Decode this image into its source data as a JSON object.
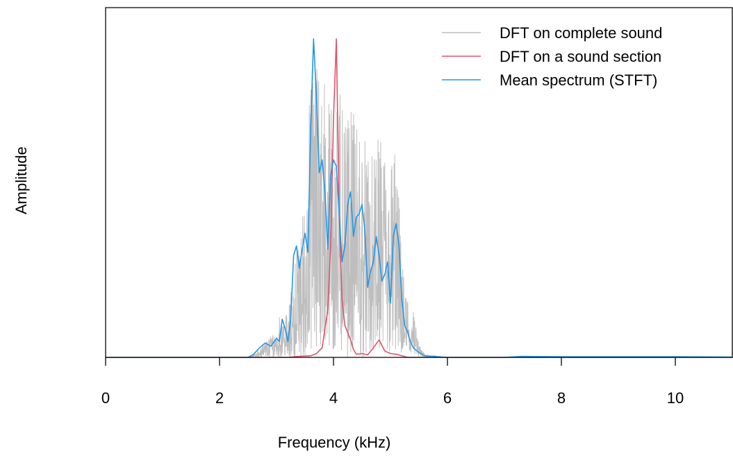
{
  "chart_data": {
    "type": "line",
    "xlabel": "Frequency (kHz)",
    "ylabel": "Amplitude",
    "xlim": [
      0,
      11
    ],
    "ylim": [
      0,
      1
    ],
    "x_ticks": [
      0,
      2,
      4,
      6,
      8,
      10
    ],
    "y_ticks_shown": false,
    "legend_position": "top-right",
    "series": [
      {
        "name": "DFT on complete sound",
        "color": "#bebebe",
        "style": "dense-noisy",
        "x": [
          0,
          2.5,
          2.6,
          2.7,
          2.8,
          2.9,
          3.0,
          3.1,
          3.2,
          3.3,
          3.4,
          3.5,
          3.6,
          3.7,
          3.8,
          3.9,
          4.0,
          4.1,
          4.2,
          4.3,
          4.4,
          4.5,
          4.6,
          4.7,
          4.8,
          4.9,
          5.0,
          5.1,
          5.2,
          5.3,
          5.4,
          5.5,
          5.6,
          6.0,
          7.0,
          8.0,
          9.0,
          10.0,
          11.0
        ],
        "envelope": [
          0,
          0,
          0.01,
          0.03,
          0.05,
          0.07,
          0.1,
          0.17,
          0.12,
          0.3,
          0.4,
          0.5,
          0.92,
          1.0,
          0.95,
          0.8,
          0.88,
          0.85,
          0.72,
          0.78,
          0.75,
          0.72,
          0.68,
          0.62,
          0.7,
          0.66,
          0.62,
          0.7,
          0.3,
          0.2,
          0.15,
          0.04,
          0.01,
          0,
          0,
          0,
          0,
          0,
          0
        ]
      },
      {
        "name": "DFT on a sound section",
        "color": "#df536b",
        "x": [
          0,
          3.2,
          3.4,
          3.6,
          3.7,
          3.8,
          3.9,
          3.95,
          4.0,
          4.05,
          4.1,
          4.15,
          4.2,
          4.3,
          4.35,
          4.4,
          4.5,
          4.6,
          4.7,
          4.8,
          4.9,
          5.0,
          5.1,
          5.2,
          5.3,
          6.0,
          11.0
        ],
        "y": [
          0,
          0,
          0.003,
          0.005,
          0.012,
          0.03,
          0.15,
          0.35,
          0.75,
          1.0,
          0.45,
          0.18,
          0.1,
          0.055,
          0.025,
          0.01,
          0.012,
          0.008,
          0.03,
          0.055,
          0.02,
          0.012,
          0.01,
          0.005,
          0,
          0,
          0
        ]
      },
      {
        "name": "Mean spectrum (STFT)",
        "color": "#2297e6",
        "x": [
          0,
          2.5,
          2.6,
          2.7,
          2.8,
          2.9,
          3.0,
          3.05,
          3.1,
          3.15,
          3.2,
          3.25,
          3.3,
          3.35,
          3.4,
          3.45,
          3.5,
          3.55,
          3.6,
          3.65,
          3.7,
          3.75,
          3.8,
          3.85,
          3.9,
          3.95,
          4.0,
          4.05,
          4.1,
          4.15,
          4.2,
          4.25,
          4.3,
          4.35,
          4.4,
          4.45,
          4.5,
          4.55,
          4.6,
          4.65,
          4.7,
          4.75,
          4.8,
          4.85,
          4.9,
          4.95,
          5.0,
          5.05,
          5.1,
          5.15,
          5.2,
          5.25,
          5.3,
          5.35,
          5.4,
          5.5,
          5.6,
          6.0,
          7.0,
          7.3,
          8.0,
          10.0,
          11.0
        ],
        "y": [
          0,
          0,
          0.01,
          0.03,
          0.045,
          0.035,
          0.06,
          0.05,
          0.12,
          0.09,
          0.05,
          0.12,
          0.32,
          0.35,
          0.28,
          0.34,
          0.39,
          0.33,
          0.72,
          1.0,
          0.82,
          0.58,
          0.62,
          0.52,
          0.34,
          0.57,
          0.62,
          0.6,
          0.45,
          0.3,
          0.35,
          0.48,
          0.52,
          0.38,
          0.44,
          0.45,
          0.48,
          0.4,
          0.22,
          0.27,
          0.3,
          0.38,
          0.32,
          0.24,
          0.26,
          0.3,
          0.17,
          0.38,
          0.42,
          0.35,
          0.18,
          0.1,
          0.08,
          0.05,
          0.03,
          0.015,
          0.005,
          0,
          0,
          0.003,
          0.002,
          0.002,
          0.001
        ]
      }
    ]
  }
}
